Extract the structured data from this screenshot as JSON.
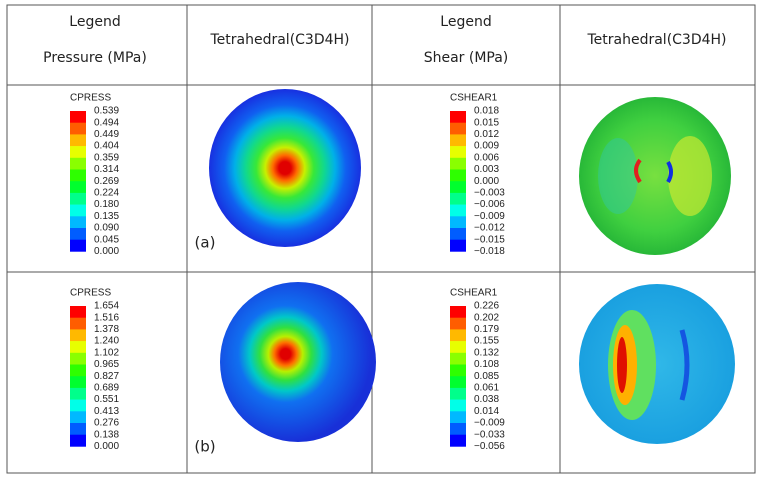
{
  "header": {
    "col1": {
      "title": "Legend",
      "subtitle": "Pressure (MPa)"
    },
    "col2": "Tetrahedral(C3D4H)",
    "col3": {
      "title": "Legend",
      "subtitle": "Shear (MPa)"
    },
    "col4": "Tetrahedral(C3D4H)"
  },
  "rows": [
    {
      "pressure_legend": {
        "title": "CPRESS",
        "values": [
          "0.539",
          "0.494",
          "0.449",
          "0.404",
          "0.359",
          "0.314",
          "0.269",
          "0.224",
          "0.180",
          "0.135",
          "0.090",
          "0.045",
          "0.000"
        ]
      },
      "label": "(a)",
      "shear_legend": {
        "title": "CSHEAR1",
        "values": [
          "0.018",
          "0.015",
          "0.012",
          "0.009",
          "0.006",
          "0.003",
          "0.000",
          "−0.003",
          "−0.006",
          "−0.009",
          "−0.012",
          "−0.015",
          "−0.018"
        ]
      }
    },
    {
      "pressure_legend": {
        "title": "CPRESS",
        "values": [
          "1.654",
          "1.516",
          "1.378",
          "1.240",
          "1.102",
          "0.965",
          "0.827",
          "0.689",
          "0.551",
          "0.413",
          "0.276",
          "0.138",
          "0.000"
        ]
      },
      "label": "(b)",
      "shear_legend": {
        "title": "CSHEAR1",
        "values": [
          "0.226",
          "0.202",
          "0.179",
          "0.155",
          "0.132",
          "0.108",
          "0.085",
          "0.061",
          "0.038",
          "0.014",
          "−0.009",
          "−0.033",
          "−0.056"
        ]
      }
    }
  ]
}
